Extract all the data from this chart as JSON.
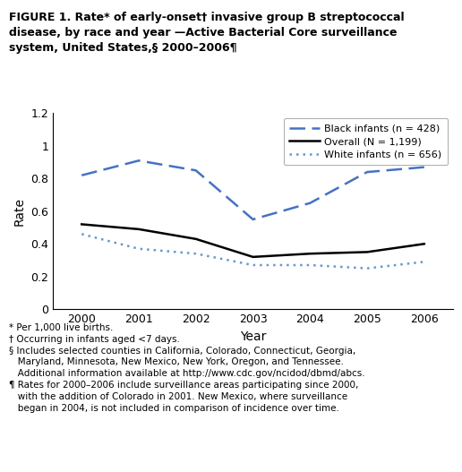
{
  "years": [
    2000,
    2001,
    2002,
    2003,
    2004,
    2005,
    2006
  ],
  "black_infants": [
    0.82,
    0.91,
    0.85,
    0.55,
    0.65,
    0.84,
    0.87
  ],
  "overall": [
    0.52,
    0.49,
    0.43,
    0.32,
    0.34,
    0.35,
    0.4
  ],
  "white_infants": [
    0.46,
    0.37,
    0.34,
    0.27,
    0.27,
    0.25,
    0.29
  ],
  "black_color": "#4472C4",
  "overall_color": "#000000",
  "white_color": "#6699CC",
  "ylim": [
    0,
    1.2
  ],
  "yticks": [
    0,
    0.2,
    0.4,
    0.6,
    0.8,
    1.0,
    1.2
  ],
  "xlabel": "Year",
  "ylabel": "Rate",
  "legend_labels": [
    "Black infants (n = 428)",
    "Overall (N = 1,199)",
    "White infants (n = 656)"
  ],
  "title": "FIGURE 1. Rate* of early-onset† invasive group B streptococcal\ndisease, by race and year —Active Bacterial Core surveillance\nsystem, United States,§ 2000–2006¶",
  "footnotes": "* Per 1,000 live births.\n† Occurring in infants aged <7 days.\n§ Includes selected counties in California, Colorado, Connecticut, Georgia,\n   Maryland, Minnesota, New Mexico, New York, Oregon, and Tennessee.\n   Additional information available at http://www.cdc.gov/ncidod/dbmd/abcs.\n¶ Rates for 2000–2006 include surveillance areas participating since 2000,\n   with the addition of Colorado in 2001. New Mexico, where surveillance\n   began in 2004, is not included in comparison of incidence over time."
}
